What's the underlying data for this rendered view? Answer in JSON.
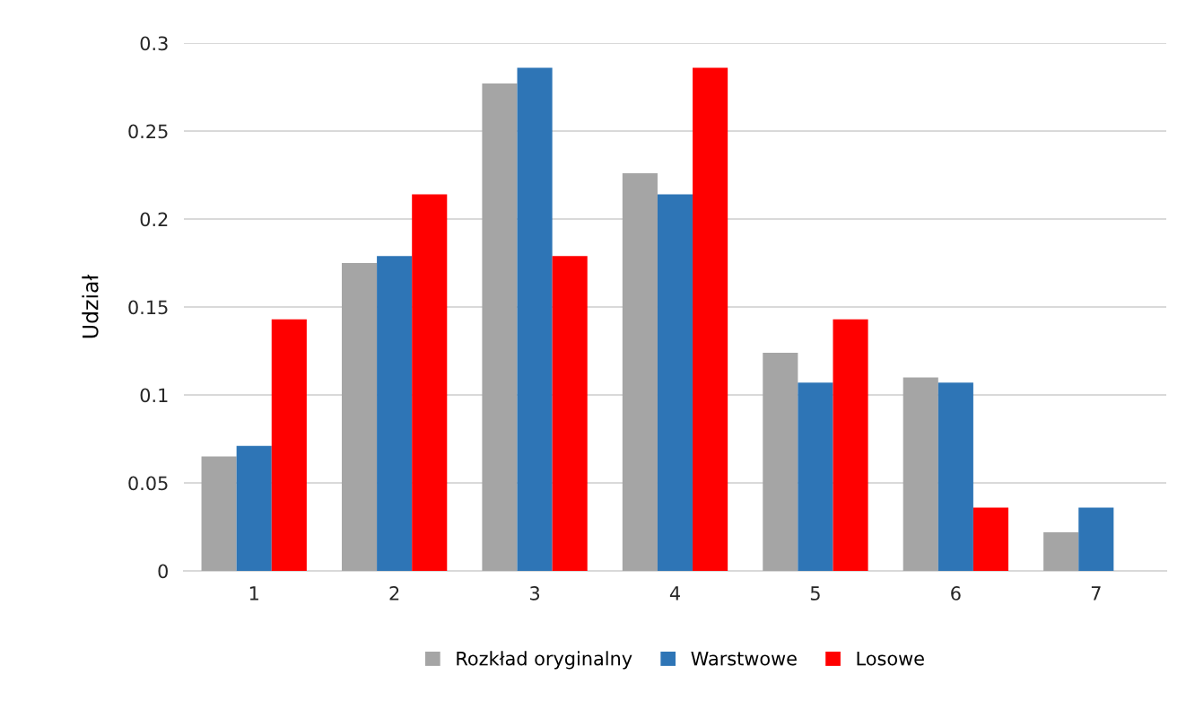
{
  "chart_data": {
    "type": "bar",
    "ylabel": "Udział",
    "categories": [
      "1",
      "2",
      "3",
      "4",
      "5",
      "6",
      "7"
    ],
    "series": [
      {
        "name": "Rozkład oryginalny",
        "color": "#a5a5a5",
        "values": [
          0.065,
          0.175,
          0.277,
          0.226,
          0.124,
          0.11,
          0.022
        ]
      },
      {
        "name": "Warstwowe",
        "color": "#2e75b6",
        "values": [
          0.071,
          0.179,
          0.286,
          0.214,
          0.107,
          0.107,
          0.036
        ]
      },
      {
        "name": "Losowe",
        "color": "#ff0000",
        "values": [
          0.143,
          0.214,
          0.179,
          0.286,
          0.143,
          0.036,
          0
        ]
      }
    ],
    "ylim": [
      0,
      0.3
    ],
    "yticks": [
      0,
      0.05,
      0.1,
      0.15,
      0.2,
      0.25,
      0.3
    ],
    "grid": "y",
    "legend": "bottom"
  }
}
